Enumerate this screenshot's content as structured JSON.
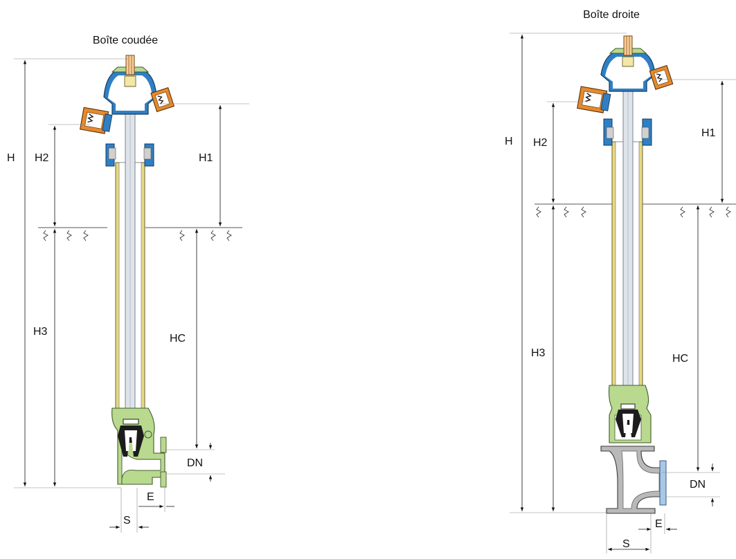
{
  "diagram": {
    "left": {
      "title": "Boîte coudée",
      "labels": {
        "h": "H",
        "h1": "H1",
        "h2": "H2",
        "h3": "H3",
        "hc": "HC",
        "dn": "DN",
        "e": "E",
        "s": "S"
      }
    },
    "right": {
      "title": "Boîte droite",
      "labels": {
        "h": "H",
        "h1": "H1",
        "h2": "H2",
        "h3": "H3",
        "hc": "HC",
        "dn": "DN",
        "e": "E",
        "s": "S"
      }
    },
    "colors": {
      "cap_blue": "#2f7fc4",
      "outlet_orange": "#e58a2e",
      "barrel_yellow": "#e7d986",
      "body_green": "#b9d98f",
      "elbow_gray": "#b9b9b9",
      "flange_blue": "#a9c8e8"
    }
  }
}
